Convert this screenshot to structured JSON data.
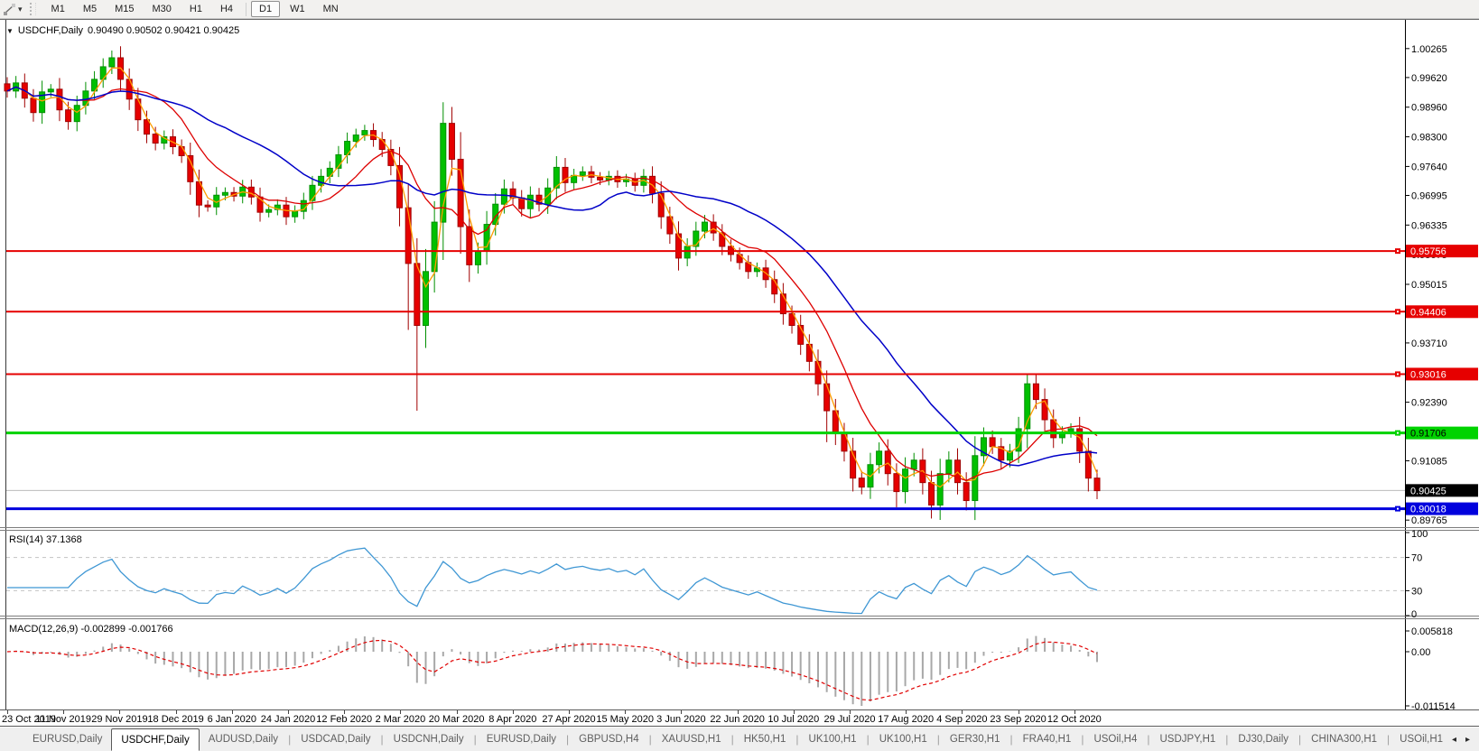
{
  "icons": {
    "title_triangle": "▼",
    "tool_caret": "▾",
    "tab_scroll_left": "◂",
    "tab_scroll_right": "▸"
  },
  "toolbar": {
    "timeframes": [
      "M1",
      "M5",
      "M15",
      "M30",
      "H1",
      "H4",
      "D1",
      "W1",
      "MN"
    ],
    "active_timeframe": "D1"
  },
  "chart_header": {
    "symbol": "USDCHF,Daily",
    "ohlc_text": "0.90490 0.90502 0.90421 0.90425"
  },
  "tabs": {
    "items": [
      "EURUSD,Daily",
      "USDCHF,Daily",
      "AUDUSD,Daily",
      "USDCAD,Daily",
      "USDCNH,Daily",
      "EURUSD,Daily",
      "GBPUSD,H4",
      "XAUUSD,H1",
      "HK50,H1",
      "UK100,H1",
      "UK100,H1",
      "GER30,H1",
      "FRA40,H1",
      "USOil,H4",
      "USDJPY,H1",
      "DJ30,Daily",
      "CHINA300,H1",
      "USOil,H1"
    ],
    "active_index": 1
  },
  "chart_data": {
    "type": "candlestick",
    "symbol": "USDCHF",
    "timeframe": "Daily",
    "current_bar_ohlc": {
      "open": 0.9049,
      "high": 0.90502,
      "low": 0.90421,
      "close": 0.90425
    },
    "price_ticks": [
      1.00265,
      0.9962,
      0.9896,
      0.983,
      0.9764,
      0.96995,
      0.96335,
      0.95675,
      0.95015,
      0.94355,
      0.9371,
      0.9305,
      0.9239,
      0.9173,
      0.91085,
      0.90425,
      0.89765
    ],
    "x_axis_dates": [
      "23 Oct 2019",
      "11 Nov 2019",
      "29 Nov 2019",
      "18 Dec 2019",
      "6 Jan 2020",
      "24 Jan 2020",
      "12 Feb 2020",
      "2 Mar 2020",
      "20 Mar 2020",
      "8 Apr 2020",
      "27 Apr 2020",
      "15 May 2020",
      "3 Jun 2020",
      "22 Jun 2020",
      "10 Jul 2020",
      "29 Jul 2020",
      "17 Aug 2020",
      "4 Sep 2020",
      "23 Sep 2020",
      "12 Oct 2020"
    ],
    "closes": [
      0.9932,
      0.995,
      0.9916,
      0.9884,
      0.993,
      0.9936,
      0.989,
      0.9864,
      0.99,
      0.9932,
      0.9958,
      0.9986,
      1.0006,
      0.9958,
      0.9914,
      0.9868,
      0.9836,
      0.9816,
      0.983,
      0.9808,
      0.9788,
      0.973,
      0.9678,
      0.9674,
      0.97,
      0.9706,
      0.9698,
      0.9718,
      0.9696,
      0.9662,
      0.9668,
      0.9678,
      0.9652,
      0.9664,
      0.9688,
      0.9722,
      0.9742,
      0.976,
      0.979,
      0.982,
      0.9834,
      0.9844,
      0.9824,
      0.9802,
      0.9766,
      0.9672,
      0.9548,
      0.941,
      0.953,
      0.964,
      0.986,
      0.978,
      0.963,
      0.9545,
      0.9575,
      0.9635,
      0.968,
      0.9714,
      0.9694,
      0.967,
      0.97,
      0.968,
      0.9716,
      0.9762,
      0.9728,
      0.9744,
      0.9752,
      0.974,
      0.9734,
      0.9742,
      0.973,
      0.9736,
      0.9722,
      0.9742,
      0.9704,
      0.9652,
      0.9614,
      0.956,
      0.9586,
      0.962,
      0.964,
      0.9616,
      0.9586,
      0.9568,
      0.955,
      0.953,
      0.9538,
      0.9512,
      0.948,
      0.9436,
      0.941,
      0.9368,
      0.933,
      0.928,
      0.922,
      0.917,
      0.913,
      0.907,
      0.905,
      0.91,
      0.913,
      0.908,
      0.904,
      0.909,
      0.911,
      0.906,
      0.901,
      0.908,
      0.911,
      0.906,
      0.902,
      0.912,
      0.916,
      0.914,
      0.911,
      0.913,
      0.918,
      0.928,
      0.9245,
      0.92,
      0.916,
      0.9172,
      0.918,
      0.913,
      0.907,
      0.9042
    ],
    "wick_overrides": {
      "46": {
        "low": 0.94
      },
      "47": {
        "low": 0.922
      },
      "50": {
        "high": 0.9907
      },
      "94": {
        "low": 0.915
      },
      "102": {
        "low": 0.9005
      },
      "106": {
        "low": 0.898
      },
      "110": {
        "low": 0.8998
      },
      "117": {
        "high": 0.9302
      }
    },
    "hlines": [
      {
        "label": "0.95756",
        "price": 0.95756,
        "color": "#e60000",
        "thickness": 2,
        "text_color": "#ffffff"
      },
      {
        "label": "0.94406",
        "price": 0.94406,
        "color": "#e60000",
        "thickness": 2,
        "text_color": "#ffffff"
      },
      {
        "label": "0.93016",
        "price": 0.93016,
        "color": "#e60000",
        "thickness": 2,
        "text_color": "#ffffff"
      },
      {
        "label": "0.91706",
        "price": 0.91706,
        "color": "#00d300",
        "thickness": 3,
        "text_color": "#000000"
      },
      {
        "label": "0.90018",
        "price": 0.90018,
        "color": "#0000dd",
        "thickness": 3,
        "text_color": "#ffffff"
      }
    ],
    "current_price": {
      "label": "0.90425",
      "price": 0.90425,
      "line_color": "#bbbbbb",
      "box_color": "#000000",
      "text_color": "#ffffff"
    },
    "colors": {
      "bull": "#00c000",
      "bull_dark": "#008f00",
      "bear": "#e60000",
      "bear_dark": "#a00000",
      "ma_fast": "#ff9c00",
      "ma_medium": "#dd0000",
      "ma_slow": "#0000c8",
      "rsi": "#3f97d4",
      "rsi_level": "#c3c3c3",
      "macd_histogram": "#a8a8a8",
      "macd_signal": "#e00000"
    },
    "indicators": {
      "rsi": {
        "label": "RSI(14) 37.1368",
        "period": 14,
        "last_value": 37.1368,
        "levels": [
          70,
          30
        ],
        "axis_labels": [
          "100",
          "70",
          "30",
          "0"
        ]
      },
      "macd": {
        "label": "MACD(12,26,9) -0.002899 -0.001766",
        "last_macd": -0.002899,
        "last_signal": -0.001766,
        "axis_labels": [
          "0.005818",
          "0.00",
          "-0.011514"
        ]
      }
    }
  }
}
